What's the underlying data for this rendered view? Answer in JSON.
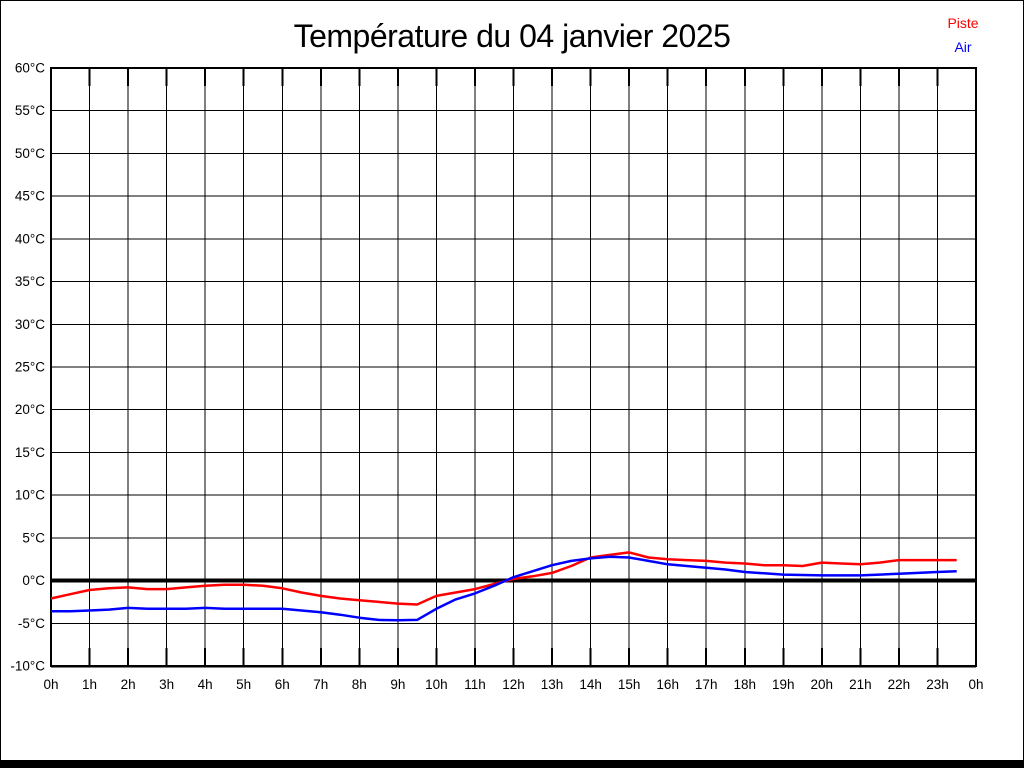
{
  "header": {
    "title": "Température du 04 janvier 2025"
  },
  "legend": {
    "items": [
      {
        "label": "Piste",
        "color": "#ff0000"
      },
      {
        "label": "Air",
        "color": "#0000ff"
      }
    ]
  },
  "colors": {
    "piste": "#ff0000",
    "air": "#0000ff",
    "grid": "#000000",
    "zero_line": "#000000",
    "text": "#000000",
    "background": "#ffffff"
  },
  "chart_data": {
    "type": "line",
    "title": "Température du 04 janvier 2025",
    "xlabel": "",
    "ylabel": "",
    "x_unit": "h",
    "y_unit": "°C",
    "xlim": [
      0,
      24
    ],
    "ylim": [
      -10,
      60
    ],
    "x_tick_step": 1,
    "y_tick_step": 5,
    "grid": true,
    "legend_position": "top-right",
    "zero_line_emphasized": true,
    "x_tick_labels": [
      "0h",
      "1h",
      "2h",
      "3h",
      "4h",
      "5h",
      "6h",
      "7h",
      "8h",
      "9h",
      "10h",
      "11h",
      "12h",
      "13h",
      "14h",
      "15h",
      "16h",
      "17h",
      "18h",
      "19h",
      "20h",
      "21h",
      "22h",
      "23h",
      "0h"
    ],
    "y_tick_labels": [
      "60°C",
      "55°C",
      "50°C",
      "45°C",
      "40°C",
      "35°C",
      "30°C",
      "25°C",
      "20°C",
      "15°C",
      "10°C",
      "5°C",
      "0°C",
      "-5°C",
      "-10°C"
    ],
    "x_hours": [
      0,
      0.5,
      1,
      1.5,
      2,
      2.5,
      3,
      3.5,
      4,
      4.5,
      5,
      5.5,
      6,
      6.5,
      7,
      7.5,
      8,
      8.5,
      9,
      9.5,
      10,
      10.5,
      11,
      11.5,
      12,
      12.5,
      13,
      13.5,
      14,
      14.5,
      15,
      15.5,
      16,
      16.5,
      17,
      17.5,
      18,
      18.5,
      19,
      19.5,
      20,
      20.5,
      21,
      21.5,
      22,
      22.5,
      23,
      23.5
    ],
    "series": [
      {
        "name": "Piste",
        "color": "#ff0000",
        "values": [
          -2.1,
          -1.6,
          -1.1,
          -0.9,
          -0.8,
          -1.0,
          -1.0,
          -0.8,
          -0.6,
          -0.5,
          -0.5,
          -0.6,
          -0.9,
          -1.4,
          -1.8,
          -2.1,
          -2.3,
          -2.5,
          -2.7,
          -2.8,
          -1.8,
          -1.4,
          -1.0,
          -0.4,
          0.2,
          0.5,
          0.9,
          1.7,
          2.7,
          3.0,
          3.3,
          2.7,
          2.5,
          2.4,
          2.3,
          2.1,
          2.0,
          1.8,
          1.8,
          1.7,
          2.1,
          2.0,
          1.9,
          2.1,
          2.4,
          2.4,
          2.4,
          2.4
        ]
      },
      {
        "name": "Air",
        "color": "#0000ff",
        "values": [
          -3.6,
          -3.6,
          -3.5,
          -3.4,
          -3.2,
          -3.3,
          -3.3,
          -3.3,
          -3.2,
          -3.3,
          -3.3,
          -3.3,
          -3.3,
          -3.5,
          -3.7,
          -4.0,
          -4.35,
          -4.6,
          -4.65,
          -4.6,
          -3.3,
          -2.2,
          -1.5,
          -0.6,
          0.4,
          1.1,
          1.8,
          2.3,
          2.6,
          2.8,
          2.7,
          2.3,
          1.9,
          1.7,
          1.5,
          1.3,
          1.0,
          0.85,
          0.7,
          0.65,
          0.6,
          0.6,
          0.6,
          0.7,
          0.8,
          0.9,
          1.0,
          1.1
        ]
      }
    ]
  }
}
